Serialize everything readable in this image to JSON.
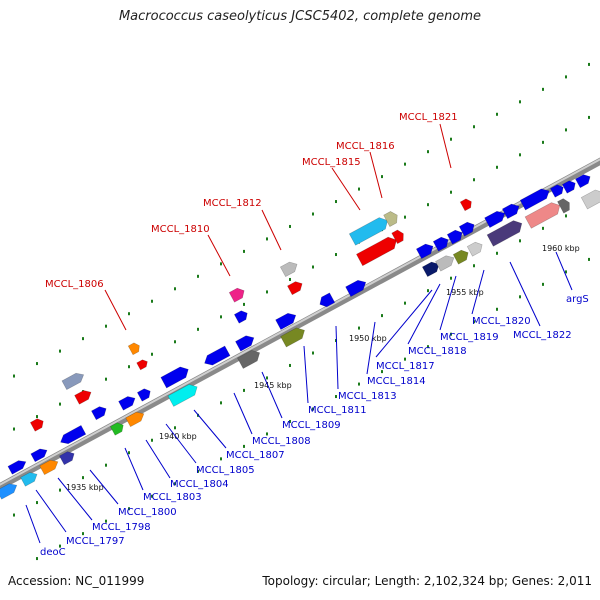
{
  "title": "Macrococcus caseolyticus JCSC5402, complete genome",
  "footer": {
    "accession": "Accession: NC_011999",
    "summary": "Topology: circular; Length: 2,102,324 bp; Genes: 2,011"
  },
  "colors": {
    "label_top": "#cc0000",
    "label_bottom": "#0000cc",
    "backbone": "#999999",
    "dot": "#1a7a1a"
  },
  "scale_ticks": [
    "1935 kbp",
    "1940 kbp",
    "1945 kbp",
    "1950 kbp",
    "1955 kbp",
    "1960 kbp"
  ],
  "top_labels": [
    "MCCL_1806",
    "MCCL_1810",
    "MCCL_1812",
    "MCCL_1815",
    "MCCL_1816",
    "MCCL_1821"
  ],
  "bottom_labels": [
    "deoC",
    "MCCL_1797",
    "MCCL_1798",
    "MCCL_1800",
    "MCCL_1803",
    "MCCL_1804",
    "MCCL_1805",
    "MCCL_1807",
    "MCCL_1808",
    "MCCL_1809",
    "MCCL_1811",
    "MCCL_1813",
    "MCCL_1814",
    "MCCL_1817",
    "MCCL_1818",
    "MCCL_1819",
    "MCCL_1820",
    "MCCL_1822",
    "argS"
  ]
}
